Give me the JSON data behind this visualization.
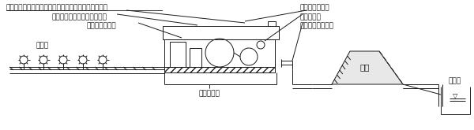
{
  "bg_color": "#ffffff",
  "line_color": "#1a1a1a",
  "labels": {
    "musui": "無送水検知器（自動停止装置）及び無水撃チェッキ弁",
    "jidoki": "自動起動装置及びミニタンク",
    "jidoun": "自動運転操作盤",
    "matsuben": "末端弁",
    "chuki": "抽気ポンプ",
    "torisuikyusu": "取水給水ポンプ",
    "mansui": "満水検知器",
    "rikusto": "陸上ストレーナー",
    "teibo": "堤防",
    "okike": "大道池"
  },
  "font_size": 6.5
}
